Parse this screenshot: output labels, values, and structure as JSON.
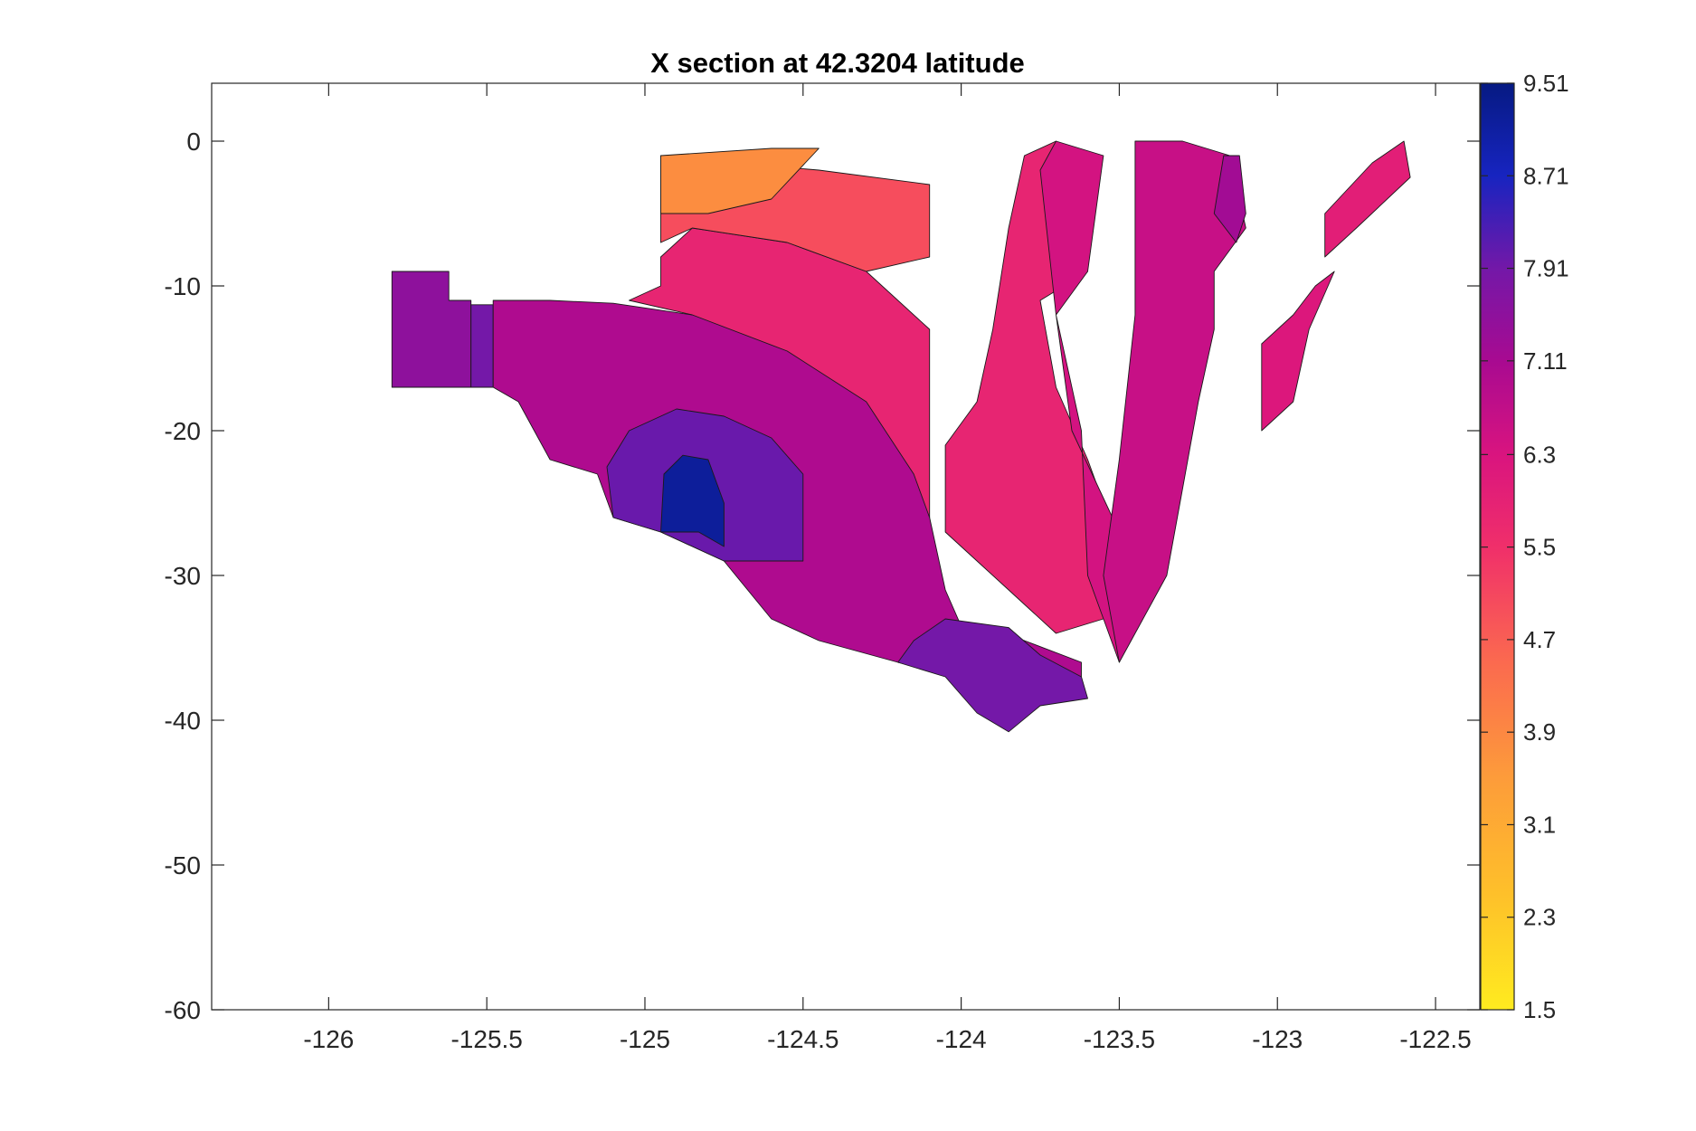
{
  "chart_data": {
    "type": "heatmap",
    "subtype": "filled-contour",
    "title": "X section at 42.3204 latitude",
    "xlabel": "",
    "ylabel": "",
    "xlim": [
      -126.37,
      -122.36
    ],
    "ylim": [
      -60,
      4
    ],
    "x_ticks": [
      -126,
      -125.5,
      -125,
      -124.5,
      -124,
      -123.5,
      -123,
      -122.5
    ],
    "x_tick_labels": [
      "-126",
      "-125.5",
      "-125",
      "-124.5",
      "-124",
      "-123.5",
      "-123",
      "-122.5"
    ],
    "y_ticks": [
      0,
      -10,
      -20,
      -30,
      -40,
      -50,
      -60
    ],
    "y_tick_labels": [
      "0",
      "-10",
      "-20",
      "-30",
      "-40",
      "-50",
      "-60"
    ],
    "grid": false,
    "colorbar": {
      "position": "right",
      "min": 1.5,
      "max": 9.51,
      "ticks": [
        9.51,
        8.71,
        7.91,
        7.11,
        6.3,
        5.5,
        4.7,
        3.9,
        3.1,
        2.3,
        1.5
      ],
      "tick_labels": [
        "9.51",
        "8.71",
        "7.91",
        "7.11",
        "6.3",
        "5.5",
        "4.7",
        "3.9",
        "3.1",
        "2.3",
        "1.5"
      ],
      "colormap_stops": [
        {
          "value": 1.5,
          "color": "#ffeb1f"
        },
        {
          "value": 2.5,
          "color": "#fec02a"
        },
        {
          "value": 3.5,
          "color": "#fd9c3a"
        },
        {
          "value": 4.5,
          "color": "#fb6a4f"
        },
        {
          "value": 5.5,
          "color": "#f02f6a"
        },
        {
          "value": 6.3,
          "color": "#d9147f"
        },
        {
          "value": 7.11,
          "color": "#a80a91"
        },
        {
          "value": 7.91,
          "color": "#7318a8"
        },
        {
          "value": 8.71,
          "color": "#1724c0"
        },
        {
          "value": 9.51,
          "color": "#061a82"
        }
      ]
    },
    "regions": [
      {
        "name": "west-shelf",
        "value": 7.5,
        "points": [
          [
            -125.8,
            -9
          ],
          [
            -125.62,
            -9
          ],
          [
            -125.62,
            -11
          ],
          [
            -125.55,
            -11
          ],
          [
            -125.55,
            -17
          ],
          [
            -125.8,
            -17
          ]
        ]
      },
      {
        "name": "west-deep",
        "value": 7.9,
        "points": [
          [
            -125.55,
            -11.3
          ],
          [
            -125.48,
            -11.3
          ],
          [
            -125.48,
            -17
          ],
          [
            -125.55,
            -17
          ]
        ]
      },
      {
        "name": "main-west-body",
        "value": 7.0,
        "points": [
          [
            -125.48,
            -11
          ],
          [
            -125.3,
            -11
          ],
          [
            -125.1,
            -11.2
          ],
          [
            -124.85,
            -12
          ],
          [
            -124.55,
            -14
          ],
          [
            -124.25,
            -17
          ],
          [
            -124.12,
            -22
          ],
          [
            -124.1,
            -26
          ],
          [
            -124.05,
            -31
          ],
          [
            -124.0,
            -33.5
          ],
          [
            -123.8,
            -34.5
          ],
          [
            -123.62,
            -36
          ],
          [
            -123.62,
            -37.5
          ],
          [
            -123.8,
            -38
          ],
          [
            -124.0,
            -37
          ],
          [
            -124.2,
            -36
          ],
          [
            -124.45,
            -34.5
          ],
          [
            -124.6,
            -33
          ],
          [
            -124.75,
            -29
          ],
          [
            -124.95,
            -27
          ],
          [
            -125.1,
            -26
          ],
          [
            -125.15,
            -23
          ],
          [
            -125.3,
            -22
          ],
          [
            -125.4,
            -18
          ],
          [
            -125.48,
            -17
          ]
        ]
      },
      {
        "name": "deep-core",
        "value": 8.0,
        "points": [
          [
            -125.05,
            -20
          ],
          [
            -124.9,
            -18.5
          ],
          [
            -124.75,
            -19
          ],
          [
            -124.6,
            -20.5
          ],
          [
            -124.5,
            -23
          ],
          [
            -124.5,
            -29
          ],
          [
            -124.75,
            -29
          ],
          [
            -124.95,
            -27
          ],
          [
            -125.1,
            -26
          ],
          [
            -125.12,
            -22.5
          ]
        ]
      },
      {
        "name": "deep-max",
        "value": 9.2,
        "points": [
          [
            -124.95,
            -27
          ],
          [
            -124.94,
            -23
          ],
          [
            -124.88,
            -21.7
          ],
          [
            -124.8,
            -22
          ],
          [
            -124.75,
            -25
          ],
          [
            -124.75,
            -28
          ],
          [
            -124.83,
            -27
          ]
        ]
      },
      {
        "name": "lower-slope",
        "value": 7.9,
        "points": [
          [
            -124.05,
            -33
          ],
          [
            -123.85,
            -33.6
          ],
          [
            -123.75,
            -35.5
          ],
          [
            -123.62,
            -37
          ],
          [
            -123.6,
            -38.5
          ],
          [
            -123.75,
            -39
          ],
          [
            -123.85,
            -40.8
          ],
          [
            -123.95,
            -39.5
          ],
          [
            -124.05,
            -37
          ],
          [
            -124.2,
            -36
          ],
          [
            -124.15,
            -34.5
          ]
        ]
      },
      {
        "name": "upper-west",
        "value": 5.8,
        "points": [
          [
            -124.95,
            -8
          ],
          [
            -124.85,
            -6
          ],
          [
            -124.55,
            -7
          ],
          [
            -124.3,
            -9
          ],
          [
            -124.1,
            -13
          ],
          [
            -124.1,
            -20
          ],
          [
            -124.1,
            -26
          ],
          [
            -124.15,
            -23
          ],
          [
            -124.3,
            -18
          ],
          [
            -124.55,
            -14.5
          ],
          [
            -124.85,
            -12
          ],
          [
            -125.05,
            -11
          ],
          [
            -124.95,
            -10
          ]
        ]
      },
      {
        "name": "upper-mid",
        "value": 5.0,
        "points": [
          [
            -124.95,
            -1
          ],
          [
            -124.72,
            -1.5
          ],
          [
            -124.45,
            -2
          ],
          [
            -124.1,
            -3
          ],
          [
            -124.1,
            -8
          ],
          [
            -124.3,
            -9
          ],
          [
            -124.55,
            -7
          ],
          [
            -124.85,
            -6
          ],
          [
            -124.95,
            -7
          ]
        ]
      },
      {
        "name": "surface-warm",
        "value": 3.8,
        "points": [
          [
            -124.95,
            -1
          ],
          [
            -124.6,
            -0.5
          ],
          [
            -124.45,
            -0.5
          ],
          [
            -124.6,
            -4
          ],
          [
            -124.8,
            -5
          ],
          [
            -124.95,
            -5
          ]
        ]
      },
      {
        "name": "ridge-west",
        "value": 5.8,
        "points": [
          [
            -124.05,
            -27
          ],
          [
            -124.05,
            -21
          ],
          [
            -123.95,
            -18
          ],
          [
            -123.9,
            -13
          ],
          [
            -123.85,
            -6
          ],
          [
            -123.8,
            -1
          ],
          [
            -123.7,
            0
          ],
          [
            -123.6,
            -3
          ],
          [
            -123.6,
            -9
          ],
          [
            -123.75,
            -11
          ],
          [
            -123.7,
            -17
          ],
          [
            -123.6,
            -22
          ],
          [
            -123.5,
            -28
          ],
          [
            -123.55,
            -33
          ],
          [
            -123.7,
            -34
          ],
          [
            -123.85,
            -31
          ],
          [
            -123.95,
            -29
          ]
        ]
      },
      {
        "name": "ridge-core",
        "value": 6.4,
        "points": [
          [
            -123.75,
            -2
          ],
          [
            -123.7,
            0
          ],
          [
            -123.55,
            -1
          ],
          [
            -123.6,
            -9
          ],
          [
            -123.7,
            -12
          ],
          [
            -123.65,
            -20
          ],
          [
            -123.5,
            -27
          ],
          [
            -123.45,
            -33
          ],
          [
            -123.5,
            -36
          ],
          [
            -123.6,
            -30
          ],
          [
            -123.62,
            -20
          ],
          [
            -123.7,
            -12
          ]
        ]
      },
      {
        "name": "east-band",
        "value": 6.6,
        "points": [
          [
            -123.45,
            0
          ],
          [
            -123.3,
            0
          ],
          [
            -123.15,
            -1
          ],
          [
            -123.1,
            -6
          ],
          [
            -123.2,
            -9
          ],
          [
            -123.2,
            -13
          ],
          [
            -123.25,
            -18
          ],
          [
            -123.3,
            -24
          ],
          [
            -123.35,
            -30
          ],
          [
            -123.45,
            -34
          ],
          [
            -123.5,
            -36
          ],
          [
            -123.55,
            -30
          ],
          [
            -123.5,
            -22
          ],
          [
            -123.45,
            -12
          ],
          [
            -123.45,
            -5
          ]
        ]
      },
      {
        "name": "east-core",
        "value": 7.2,
        "points": [
          [
            -123.17,
            -1
          ],
          [
            -123.12,
            -1
          ],
          [
            -123.1,
            -5
          ],
          [
            -123.13,
            -7
          ],
          [
            -123.2,
            -5
          ]
        ]
      },
      {
        "name": "east-strip-1",
        "value": 6.2,
        "points": [
          [
            -123.05,
            -14
          ],
          [
            -122.95,
            -12
          ],
          [
            -122.88,
            -10
          ],
          [
            -122.82,
            -9
          ],
          [
            -122.9,
            -13
          ],
          [
            -122.95,
            -18
          ],
          [
            -123.05,
            -20
          ]
        ]
      },
      {
        "name": "east-strip-2",
        "value": 6.0,
        "points": [
          [
            -122.85,
            -5
          ],
          [
            -122.7,
            -1.5
          ],
          [
            -122.6,
            0
          ],
          [
            -122.58,
            -2.5
          ],
          [
            -122.75,
            -6
          ],
          [
            -122.85,
            -8
          ]
        ]
      }
    ]
  }
}
